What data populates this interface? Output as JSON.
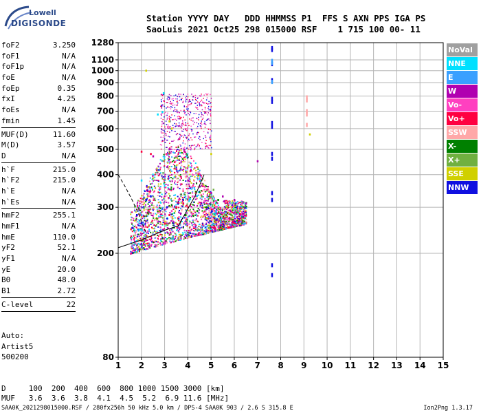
{
  "logo": {
    "line1": "Lowell",
    "line2": "DIGISONDE"
  },
  "header": {
    "line1": "Station YYYY DAY   DDD HHMMSS P1  FFS S AXN PPS IGA PS",
    "line2": "SaoLuis 2021 Oct25 298 015000 RSF    1 715 100 00- 11"
  },
  "params_group1": [
    {
      "label": "foF2",
      "value": "3.250"
    },
    {
      "label": "foF1",
      "value": "N/A"
    },
    {
      "label": "foF1p",
      "value": "N/A"
    },
    {
      "label": "foE",
      "value": "N/A"
    },
    {
      "label": "foEp",
      "value": "0.35"
    },
    {
      "label": "fxI",
      "value": "4.25"
    },
    {
      "label": "foEs",
      "value": "N/A"
    },
    {
      "label": "fmin",
      "value": "1.45"
    }
  ],
  "params_group2": [
    {
      "label": "MUF(D)",
      "value": "11.60"
    },
    {
      "label": "M(D)",
      "value": "3.57"
    },
    {
      "label": "D",
      "value": "N/A"
    }
  ],
  "params_group3": [
    {
      "label": "h`F",
      "value": "215.0"
    },
    {
      "label": "h`F2",
      "value": "215.0"
    },
    {
      "label": "h`E",
      "value": "N/A"
    },
    {
      "label": "h`Es",
      "value": "N/A"
    }
  ],
  "params_group4": [
    {
      "label": "hmF2",
      "value": "255.1"
    },
    {
      "label": "hmF1",
      "value": "N/A"
    },
    {
      "label": "hmE",
      "value": "110.0"
    },
    {
      "label": "yF2",
      "value": "52.1"
    },
    {
      "label": "yF1",
      "value": "N/A"
    },
    {
      "label": "yE",
      "value": "20.0"
    },
    {
      "label": "B0",
      "value": "48.0"
    },
    {
      "label": "B1",
      "value": "2.72"
    }
  ],
  "params_group5": [
    {
      "label": "C-level",
      "value": "22"
    }
  ],
  "auto": {
    "line1": "Auto:",
    "line2": "Artist5",
    "line3": "500200"
  },
  "legend": [
    {
      "label": "NoVal",
      "color": "#a0a0a0"
    },
    {
      "label": "NNE",
      "color": "#00e0ff"
    },
    {
      "label": "E",
      "color": "#3aa0ff"
    },
    {
      "label": "W",
      "color": "#b000b0"
    },
    {
      "label": "Vo-",
      "color": "#ff40c0"
    },
    {
      "label": "Vo+",
      "color": "#ff0040"
    },
    {
      "label": "SSW",
      "color": "#ffa8a8"
    },
    {
      "label": "X-",
      "color": "#008000"
    },
    {
      "label": "X+",
      "color": "#70b040"
    },
    {
      "label": "SSE",
      "color": "#d0d000"
    },
    {
      "label": "NNW",
      "color": "#1010e0"
    }
  ],
  "table": {
    "row1": "D     100  200  400  600  800 1000 1500 3000 [km]",
    "row2": "MUF   3.6  3.6  3.8  4.1  4.5  5.2  6.9 11.6 [MHz]"
  },
  "footer": "SAA0K_2021298015000.RSF / 280fx256h 50 kHz 5.0 km / DPS-4 SAA0K 903 / 2.6 S 315.8 E",
  "version": "Ion2Png 1.3.17",
  "chart_data": {
    "type": "scatter",
    "title": "",
    "xlabel": "",
    "ylabel": "",
    "xlim": [
      1,
      15
    ],
    "ylim": [
      80,
      1280
    ],
    "y_scale": "log",
    "x_ticks": [
      1,
      2,
      3,
      4,
      5,
      6,
      7,
      8,
      9,
      10,
      11,
      12,
      13,
      14,
      15
    ],
    "y_ticks": [
      80,
      200,
      300,
      400,
      500,
      600,
      700,
      800,
      900,
      1000,
      1100,
      1280
    ],
    "grid": true,
    "legend_position": "right",
    "series": [
      {
        "name": "NNW",
        "color": "#1010e0",
        "points": [
          [
            7.62,
            1220
          ],
          [
            7.62,
            1200
          ],
          [
            7.62,
            1060
          ],
          [
            7.62,
            920
          ],
          [
            7.62,
            780
          ],
          [
            7.62,
            760
          ],
          [
            7.62,
            630
          ],
          [
            7.62,
            610
          ],
          [
            7.62,
            480
          ],
          [
            7.62,
            460
          ],
          [
            7.62,
            340
          ],
          [
            7.62,
            320
          ],
          [
            7.62,
            180
          ],
          [
            7.62,
            165
          ],
          [
            1.8,
            280
          ],
          [
            2.0,
            260
          ],
          [
            2.2,
            320
          ],
          [
            2.4,
            330
          ],
          [
            1.6,
            250
          ],
          [
            3.1,
            300
          ]
        ]
      },
      {
        "name": "E",
        "color": "#3aa0ff",
        "points": [
          [
            7.62,
            1090
          ],
          [
            7.62,
            1070
          ],
          [
            7.62,
            905
          ],
          [
            2.0,
            280
          ],
          [
            1.9,
            260
          ],
          [
            2.1,
            240
          ]
        ]
      },
      {
        "name": "NNE",
        "color": "#00e0ff",
        "points": [
          [
            2.7,
            680
          ],
          [
            2.9,
            695
          ],
          [
            2.0,
            380
          ],
          [
            2.95,
            820
          ]
        ]
      },
      {
        "name": "SSW",
        "color": "#ffa8a8",
        "points": [
          [
            9.12,
            790
          ],
          [
            9.12,
            770
          ],
          [
            9.12,
            700
          ],
          [
            9.12,
            680
          ],
          [
            9.12,
            620
          ]
        ]
      },
      {
        "name": "SSE",
        "color": "#d0d000",
        "points": [
          [
            2.2,
            1000
          ],
          [
            9.25,
            570
          ],
          [
            5.0,
            480
          ],
          [
            3.2,
            640
          ],
          [
            3.3,
            600
          ]
        ]
      },
      {
        "name": "W",
        "color": "#b000b0",
        "points": [
          [
            3.2,
            500
          ],
          [
            3.5,
            420
          ],
          [
            4.0,
            380
          ],
          [
            4.5,
            360
          ],
          [
            5.0,
            340
          ],
          [
            5.5,
            330
          ],
          [
            6.0,
            320
          ],
          [
            6.5,
            310
          ],
          [
            7.0,
            450
          ],
          [
            3.0,
            260
          ],
          [
            2.5,
            470
          ]
        ]
      },
      {
        "name": "Vo+",
        "color": "#ff0040",
        "points": [
          [
            3.0,
            260
          ],
          [
            3.2,
            280
          ],
          [
            3.5,
            300
          ],
          [
            3.8,
            310
          ],
          [
            4.0,
            300
          ],
          [
            2.0,
            490
          ],
          [
            2.4,
            480
          ]
        ]
      },
      {
        "name": "Vo-",
        "color": "#ff40c0",
        "points": [
          [
            3.3,
            290
          ],
          [
            3.6,
            320
          ],
          [
            4.2,
            330
          ],
          [
            4.8,
            350
          ],
          [
            5.2,
            300
          ]
        ]
      },
      {
        "name": "X-",
        "color": "#008000",
        "points": [
          [
            4.4,
            290
          ],
          [
            4.8,
            300
          ],
          [
            5.3,
            320
          ],
          [
            3.9,
            280
          ]
        ]
      },
      {
        "name": "X+",
        "color": "#70b040",
        "points": [
          [
            4.6,
            330
          ],
          [
            5.1,
            350
          ],
          [
            4.1,
            340
          ]
        ]
      }
    ]
  }
}
